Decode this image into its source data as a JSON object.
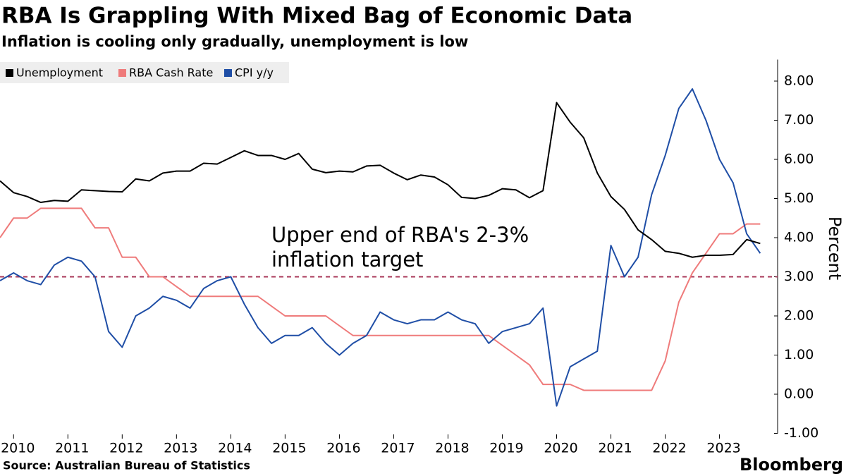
{
  "chart_data": {
    "type": "line",
    "title": "RBA Is Grappling With Mixed Bag of Economic Data",
    "subtitle": "Inflation is cooling only gradually, unemployment is low",
    "y_axis_label": "Percent",
    "source": "Source: Australian Bureau of Statistics",
    "brand": "Bloomberg",
    "annotation": [
      "Upper end of RBA's 2-3%",
      "inflation target"
    ],
    "reference_line": {
      "value": 3,
      "color": "#a8385a"
    },
    "x": [
      2009.75,
      2010,
      2010.25,
      2010.5,
      2010.75,
      2011,
      2011.25,
      2011.5,
      2011.75,
      2012,
      2012.25,
      2012.5,
      2012.75,
      2013,
      2013.25,
      2013.5,
      2013.75,
      2014,
      2014.25,
      2014.5,
      2014.75,
      2015,
      2015.25,
      2015.5,
      2015.75,
      2016,
      2016.25,
      2016.5,
      2016.75,
      2017,
      2017.25,
      2017.5,
      2017.75,
      2018,
      2018.25,
      2018.5,
      2018.75,
      2019,
      2019.25,
      2019.5,
      2019.75,
      2020,
      2020.25,
      2020.5,
      2020.75,
      2021,
      2021.25,
      2021.5,
      2021.75,
      2022,
      2022.25,
      2022.5,
      2022.75,
      2023,
      2023.25,
      2023.5,
      2023.75
    ],
    "xlim": [
      2009.75,
      2024.07
    ],
    "xticks": [
      2010,
      2011,
      2012,
      2013,
      2014,
      2015,
      2016,
      2017,
      2018,
      2019,
      2020,
      2021,
      2022,
      2023
    ],
    "ylim": [
      -1,
      8.55
    ],
    "yticks": [
      {
        "value": -1,
        "label": "-1.00"
      },
      {
        "value": 0,
        "label": "0.00"
      },
      {
        "value": 1,
        "label": "1.00"
      },
      {
        "value": 2,
        "label": "2.00"
      },
      {
        "value": 3,
        "label": "3.00"
      },
      {
        "value": 4,
        "label": "4.00"
      },
      {
        "value": 5,
        "label": "5.00"
      },
      {
        "value": 6,
        "label": "6.00"
      },
      {
        "value": 7,
        "label": "7.00"
      },
      {
        "value": 8,
        "label": "8.00"
      }
    ],
    "series": [
      {
        "name": "Unemployment",
        "color": "#000000",
        "values": [
          5.45,
          5.15,
          5.05,
          4.9,
          4.95,
          4.93,
          5.22,
          5.2,
          5.18,
          5.17,
          5.5,
          5.45,
          5.65,
          5.7,
          5.7,
          5.9,
          5.88,
          6.05,
          6.22,
          6.1,
          6.1,
          6.0,
          6.15,
          5.75,
          5.66,
          5.7,
          5.68,
          5.83,
          5.85,
          5.65,
          5.48,
          5.6,
          5.55,
          5.35,
          5.03,
          5.0,
          5.08,
          5.25,
          5.22,
          5.02,
          5.2,
          7.45,
          6.95,
          6.55,
          5.65,
          5.05,
          4.72,
          4.2,
          3.95,
          3.65,
          3.6,
          3.5,
          3.55,
          3.55,
          3.57,
          3.95,
          3.85
        ]
      },
      {
        "name": "RBA Cash Rate",
        "color": "#ef7b7b",
        "values": [
          4.0,
          4.5,
          4.5,
          4.75,
          4.75,
          4.75,
          4.75,
          4.25,
          4.25,
          3.5,
          3.5,
          3.0,
          3.0,
          2.75,
          2.5,
          2.5,
          2.5,
          2.5,
          2.5,
          2.5,
          2.25,
          2.0,
          2.0,
          2.0,
          2.0,
          1.75,
          1.5,
          1.5,
          1.5,
          1.5,
          1.5,
          1.5,
          1.5,
          1.5,
          1.5,
          1.5,
          1.5,
          1.25,
          1.0,
          0.75,
          0.25,
          0.25,
          0.25,
          0.1,
          0.1,
          0.1,
          0.1,
          0.1,
          0.1,
          0.85,
          2.35,
          3.1,
          3.6,
          4.1,
          4.1,
          4.35,
          4.35
        ]
      },
      {
        "name": "CPI y/y",
        "color": "#1f4ea6",
        "values": [
          2.9,
          3.1,
          2.9,
          2.8,
          3.3,
          3.5,
          3.4,
          3.0,
          1.6,
          1.2,
          2.0,
          2.2,
          2.5,
          2.4,
          2.2,
          2.7,
          2.9,
          3.0,
          2.3,
          1.7,
          1.3,
          1.5,
          1.5,
          1.7,
          1.3,
          1.0,
          1.3,
          1.5,
          2.1,
          1.9,
          1.8,
          1.9,
          1.9,
          2.1,
          1.9,
          1.8,
          1.3,
          1.6,
          1.7,
          1.8,
          2.2,
          -0.3,
          0.7,
          0.9,
          1.1,
          3.8,
          3.0,
          3.5,
          5.1,
          6.1,
          7.3,
          7.8,
          7.0,
          6.0,
          5.4,
          4.1,
          3.6
        ]
      }
    ]
  }
}
